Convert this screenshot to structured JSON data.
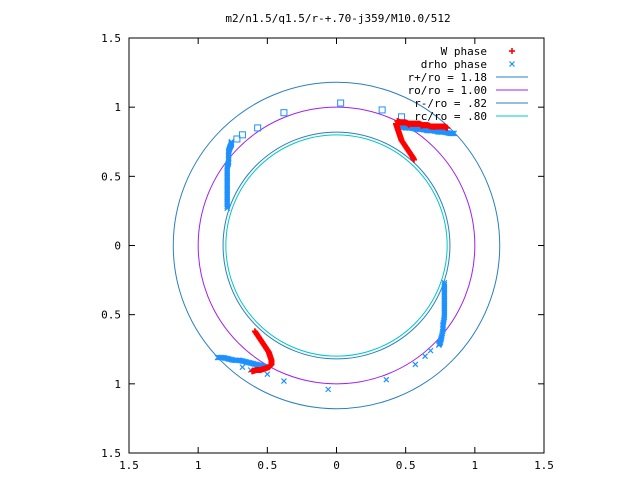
{
  "chart_data": {
    "type": "scatter",
    "title": "m2/n1.5/q1.5/r-+.70-j359/M10.0/512",
    "xlabel": "",
    "ylabel": "",
    "xlim": [
      -1.5,
      1.5
    ],
    "ylim": [
      -1.5,
      1.5
    ],
    "xticks": [
      -1.5,
      -1,
      -0.5,
      0,
      0.5,
      1,
      1.5
    ],
    "yticks": [
      -1.5,
      -1,
      -0.5,
      0,
      0.5,
      1,
      1.5
    ],
    "xtick_labels": [
      "1.5",
      "1",
      "0.5",
      "0",
      "0.5",
      "1",
      "1.5"
    ],
    "ytick_labels": [
      "1.5",
      "1",
      "0.5",
      "0",
      "0.5",
      "1",
      "1.5"
    ],
    "grid": false,
    "legend": "top-right",
    "colors": {
      "w_phase": "#ff0000",
      "drho_phase": "#1e90ff",
      "r_plus": "#1f78b4",
      "ro": "#a020f0",
      "r_minus": "#1f78b4",
      "rc": "#00c8c8"
    },
    "circles": [
      {
        "name": "r+/ro = 1.18",
        "radius": 1.18,
        "color": "#2b7fc0"
      },
      {
        "name": "ro/ro = 1.00",
        "radius": 1.0,
        "color": "#a020f0"
      },
      {
        "name": "r-/ro = .82",
        "radius": 0.82,
        "color": "#2b7fc0"
      },
      {
        "name": "rc/ro = .80",
        "radius": 0.8,
        "color": "#00c8c8"
      }
    ],
    "series": [
      {
        "name": "W phase",
        "marker": "+",
        "color": "#ff0000",
        "segments": [
          [
            [
              0.44,
              0.9
            ],
            [
              0.46,
              0.89
            ],
            [
              0.48,
              0.89
            ],
            [
              0.5,
              0.89
            ],
            [
              0.52,
              0.88
            ],
            [
              0.54,
              0.88
            ],
            [
              0.56,
              0.88
            ],
            [
              0.58,
              0.88
            ],
            [
              0.6,
              0.88
            ],
            [
              0.62,
              0.87
            ],
            [
              0.64,
              0.87
            ],
            [
              0.66,
              0.87
            ],
            [
              0.68,
              0.86
            ],
            [
              0.7,
              0.86
            ],
            [
              0.72,
              0.86
            ],
            [
              0.74,
              0.86
            ],
            [
              0.76,
              0.86
            ],
            [
              0.78,
              0.86
            ],
            [
              0.8,
              0.85
            ],
            [
              0.43,
              0.88
            ],
            [
              0.44,
              0.85
            ],
            [
              0.45,
              0.82
            ],
            [
              0.46,
              0.79
            ],
            [
              0.47,
              0.76
            ],
            [
              0.49,
              0.73
            ],
            [
              0.51,
              0.7
            ],
            [
              0.53,
              0.67
            ],
            [
              0.55,
              0.64
            ],
            [
              0.56,
              0.62
            ]
          ],
          [
            [
              -0.59,
              -0.62
            ],
            [
              -0.57,
              -0.65
            ],
            [
              -0.55,
              -0.68
            ],
            [
              -0.53,
              -0.71
            ],
            [
              -0.51,
              -0.74
            ],
            [
              -0.49,
              -0.77
            ],
            [
              -0.48,
              -0.8
            ],
            [
              -0.47,
              -0.83
            ],
            [
              -0.47,
              -0.86
            ],
            [
              -0.49,
              -0.88
            ],
            [
              -0.52,
              -0.89
            ],
            [
              -0.55,
              -0.9
            ],
            [
              -0.58,
              -0.9
            ],
            [
              -0.61,
              -0.91
            ]
          ]
        ]
      },
      {
        "name": "drho phase",
        "marker": "x",
        "color": "#1e90ff",
        "segments": [
          [
            [
              -0.79,
              0.27
            ],
            [
              -0.79,
              0.32
            ],
            [
              -0.79,
              0.37
            ],
            [
              -0.79,
              0.42
            ],
            [
              -0.79,
              0.47
            ],
            [
              -0.79,
              0.52
            ],
            [
              -0.79,
              0.57
            ],
            [
              -0.78,
              0.6
            ],
            [
              -0.78,
              0.64
            ],
            [
              -0.78,
              0.68
            ],
            [
              -0.77,
              0.71
            ],
            [
              -0.76,
              0.73
            ],
            [
              -0.76,
              0.75
            ]
          ],
          [
            [
              0.78,
              -0.27
            ],
            [
              0.78,
              -0.32
            ],
            [
              0.78,
              -0.37
            ],
            [
              0.78,
              -0.42
            ],
            [
              0.78,
              -0.47
            ],
            [
              0.78,
              -0.52
            ],
            [
              0.77,
              -0.57
            ],
            [
              0.77,
              -0.61
            ],
            [
              0.76,
              -0.66
            ],
            [
              0.75,
              -0.7
            ],
            [
              0.74,
              -0.72
            ]
          ],
          [
            [
              0.46,
              0.86
            ],
            [
              0.5,
              0.85
            ],
            [
              0.54,
              0.85
            ],
            [
              0.58,
              0.84
            ],
            [
              0.62,
              0.84
            ],
            [
              0.66,
              0.83
            ],
            [
              0.7,
              0.83
            ],
            [
              0.74,
              0.82
            ],
            [
              0.78,
              0.82
            ],
            [
              0.82,
              0.81
            ],
            [
              0.85,
              0.81
            ]
          ],
          [
            [
              -0.86,
              -0.81
            ],
            [
              -0.82,
              -0.81
            ],
            [
              -0.78,
              -0.82
            ],
            [
              -0.74,
              -0.83
            ],
            [
              -0.7,
              -0.83
            ],
            [
              -0.66,
              -0.84
            ],
            [
              -0.62,
              -0.85
            ],
            [
              -0.58,
              -0.86
            ],
            [
              -0.54,
              -0.87
            ],
            [
              -0.5,
              -0.88
            ]
          ]
        ],
        "scattered_x": [
          [
            -0.68,
            -0.88
          ],
          [
            -0.62,
            -0.9
          ],
          [
            -0.5,
            -0.93
          ],
          [
            -0.38,
            -0.98
          ],
          [
            -0.06,
            -1.04
          ],
          [
            0.36,
            -0.97
          ],
          [
            0.57,
            -0.86
          ],
          [
            0.64,
            -0.8
          ],
          [
            0.68,
            -0.76
          ]
        ],
        "scattered_square": [
          [
            -0.72,
            0.77
          ],
          [
            -0.68,
            0.8
          ],
          [
            -0.57,
            0.85
          ],
          [
            -0.38,
            0.96
          ],
          [
            0.03,
            1.03
          ],
          [
            0.33,
            0.98
          ],
          [
            0.47,
            0.93
          ]
        ]
      }
    ]
  }
}
